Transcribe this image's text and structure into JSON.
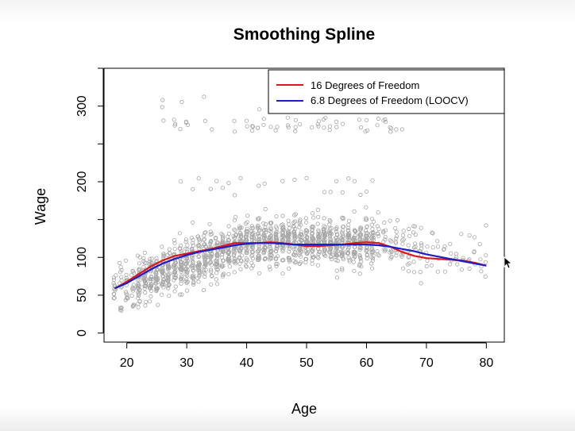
{
  "chart_data": {
    "type": "scatter",
    "title": "Smoothing Spline",
    "xlabel": "Age",
    "ylabel": "Wage",
    "xlim": [
      16.2,
      83
    ],
    "ylim": [
      -12,
      350
    ],
    "xticks": [
      20,
      30,
      40,
      50,
      60,
      70,
      80
    ],
    "yticks": [
      0,
      50,
      100,
      200,
      300
    ],
    "grid": false,
    "legend_position": "top-right",
    "points_color": "#a6a6a6",
    "points_sample": {
      "note_free": true,
      "age": [
        18,
        19,
        20,
        22,
        25,
        28,
        30,
        33,
        35,
        38,
        40,
        43,
        45,
        48,
        50,
        53,
        55,
        58,
        60,
        63,
        66,
        70,
        73,
        77,
        80
      ],
      "wage": [
        70,
        45,
        62,
        75,
        80,
        95,
        100,
        105,
        112,
        118,
        110,
        125,
        120,
        115,
        117,
        110,
        118,
        112,
        120,
        100,
        95,
        90,
        85,
        88,
        85
      ]
    },
    "series": [
      {
        "name": "16 Degrees of Freedom",
        "color": "#e0161b",
        "x": [
          18,
          20,
          22,
          24,
          26,
          28,
          30,
          32,
          34,
          36,
          38,
          40,
          42,
          44,
          46,
          48,
          50,
          52,
          54,
          56,
          58,
          60,
          62,
          64,
          66,
          68,
          70,
          72,
          74,
          76,
          78,
          80
        ],
        "y": [
          59,
          68,
          78,
          88,
          96,
          102,
          105,
          108,
          111,
          115,
          119,
          119,
          119,
          120,
          119,
          117,
          115,
          115,
          116,
          117,
          119,
          120,
          119,
          114,
          107,
          102,
          99,
          98,
          97,
          96,
          93,
          89
        ]
      },
      {
        "name": "6.8 Degrees of Freedom (LOOCV)",
        "color": "#1d1dc9",
        "x": [
          18,
          20,
          22,
          24,
          26,
          28,
          30,
          32,
          34,
          36,
          38,
          40,
          42,
          44,
          46,
          48,
          50,
          52,
          54,
          56,
          58,
          60,
          62,
          64,
          66,
          68,
          70,
          72,
          74,
          76,
          78,
          80
        ],
        "y": [
          59,
          66,
          75,
          84,
          92,
          98,
          103,
          107,
          110,
          113,
          116,
          118,
          119,
          119,
          118,
          117,
          117,
          117,
          117,
          117,
          117,
          117,
          116,
          114,
          111,
          108,
          104,
          101,
          98,
          95,
          92,
          89
        ]
      }
    ]
  },
  "icons": {
    "cursor": "mouse-pointer-icon"
  }
}
